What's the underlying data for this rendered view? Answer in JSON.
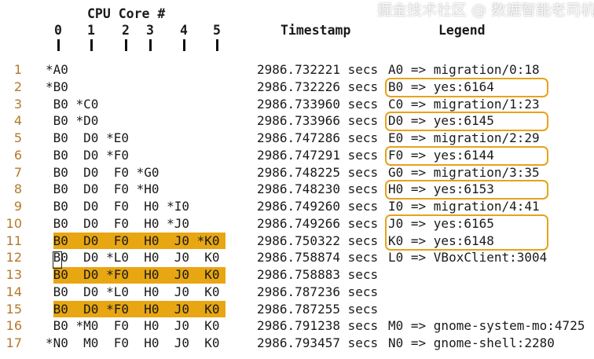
{
  "header": {
    "cpu_title": "CPU Core #",
    "cores": [
      "0",
      "1",
      "2",
      "3",
      "4",
      "5"
    ],
    "timestamp_title": "Timestamp",
    "legend_title": "Legend"
  },
  "rows": [
    {
      "n": "1",
      "cells": "*A0",
      "ts": "2986.732221 secs",
      "legend": "A0 => migration/0:18"
    },
    {
      "n": "2",
      "cells": "*B0",
      "ts": "2986.732226 secs",
      "legend": "B0 => yes:6164"
    },
    {
      "n": "3",
      "cells": " B0 *C0",
      "ts": "2986.733960 secs",
      "legend": "C0 => migration/1:23"
    },
    {
      "n": "4",
      "cells": " B0 *D0",
      "ts": "2986.733966 secs",
      "legend": "D0 => yes:6145"
    },
    {
      "n": "5",
      "cells": " B0  D0 *E0",
      "ts": "2986.747286 secs",
      "legend": "E0 => migration/2:29"
    },
    {
      "n": "6",
      "cells": " B0  D0 *F0",
      "ts": "2986.747291 secs",
      "legend": "F0 => yes:6144"
    },
    {
      "n": "7",
      "cells": " B0  D0  F0 *G0",
      "ts": "2986.748225 secs",
      "legend": "G0 => migration/3:35"
    },
    {
      "n": "8",
      "cells": " B0  D0  F0 *H0",
      "ts": "2986.748230 secs",
      "legend": "H0 => yes:6153"
    },
    {
      "n": "9",
      "cells": " B0  D0  F0  H0 *I0",
      "ts": "2986.749260 secs",
      "legend": "I0 => migration/4:41"
    },
    {
      "n": "10",
      "cells": " B0  D0  F0  H0 *J0",
      "ts": "2986.749266 secs",
      "legend": "J0 => yes:6165"
    },
    {
      "n": "11",
      "cells": " B0  D0  F0  H0  J0 *K0",
      "ts": "2986.750322 secs",
      "legend": "K0 => yes:6148"
    },
    {
      "n": "12",
      "cells": " B0  D0 *L0  H0  J0  K0",
      "ts": "2986.758874 secs",
      "legend": "L0 => VBoxClient:3004"
    },
    {
      "n": "13",
      "cells": " B0  D0 *F0  H0  J0  K0",
      "ts": "2986.758883 secs",
      "legend": ""
    },
    {
      "n": "14",
      "cells": " B0  D0 *L0  H0  J0  K0",
      "ts": "2986.787236 secs",
      "legend": ""
    },
    {
      "n": "15",
      "cells": " B0  D0 *F0  H0  J0  K0",
      "ts": "2986.787255 secs",
      "legend": ""
    },
    {
      "n": "16",
      "cells": " B0 *M0  F0  H0  J0  K0",
      "ts": "2986.791238 secs",
      "legend": "M0 => gnome-system-mo:4725"
    },
    {
      "n": "17",
      "cells": "*N0  M0  F0  H0  J0  K0",
      "ts": "2986.793457 secs",
      "legend": "N0 => gnome-shell:2280"
    }
  ],
  "highlighted_rows": [
    "11",
    "13",
    "15"
  ],
  "highlight_color": "#e8a612",
  "legend_box_color": "#e6a31c",
  "watermark": "掘金技术社区 @ 数据智能老司机"
}
